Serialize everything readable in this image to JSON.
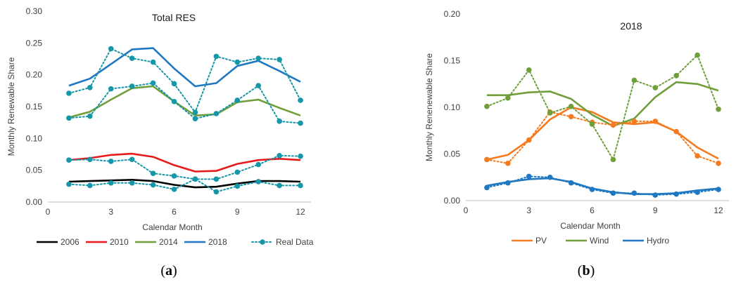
{
  "chart_data": [
    {
      "type": "line",
      "panel_label": "(a)",
      "title": "Total RES",
      "xlabel": "Calendar Month",
      "ylabel": "Monthly Renewable Share",
      "xlim": [
        0,
        12.5
      ],
      "ylim": [
        0,
        0.3
      ],
      "xticks": [
        "0",
        "3",
        "6",
        "9",
        "12"
      ],
      "yticks": [
        "0.00",
        "0.05",
        "0.10",
        "0.15",
        "0.20",
        "0.25",
        "0.30"
      ],
      "x": [
        1,
        2,
        3,
        4,
        5,
        6,
        7,
        8,
        9,
        10,
        11,
        12
      ],
      "legend_position": "bottom",
      "series": [
        {
          "name": "2006",
          "color": "#000000",
          "style": "solid",
          "values": [
            0.032,
            0.033,
            0.034,
            0.035,
            0.033,
            0.027,
            0.023,
            0.024,
            0.029,
            0.033,
            0.033,
            0.032
          ]
        },
        {
          "name": "2010",
          "color": "#e8191b",
          "style": "solid",
          "values": [
            0.066,
            0.069,
            0.074,
            0.076,
            0.071,
            0.058,
            0.048,
            0.049,
            0.06,
            0.066,
            0.068,
            0.066
          ]
        },
        {
          "name": "2014",
          "color": "#6f9e3a",
          "style": "solid",
          "values": [
            0.133,
            0.142,
            0.161,
            0.179,
            0.182,
            0.158,
            0.136,
            0.138,
            0.157,
            0.161,
            0.148,
            0.136
          ]
        },
        {
          "name": "2018",
          "color": "#1f78c1",
          "style": "solid",
          "values": [
            0.183,
            0.194,
            0.217,
            0.24,
            0.242,
            0.21,
            0.182,
            0.187,
            0.214,
            0.222,
            0.206,
            0.189
          ]
        },
        {
          "name": "Real Data",
          "color": "#1796a8",
          "style": "dotted",
          "marker": true,
          "group": "2018",
          "values": [
            0.171,
            0.18,
            0.241,
            0.226,
            0.22,
            0.186,
            0.141,
            0.229,
            0.22,
            0.226,
            0.224,
            0.16
          ]
        },
        {
          "name": "",
          "color": "#1796a8",
          "style": "dotted",
          "marker": true,
          "group": "2014",
          "values": [
            0.132,
            0.135,
            0.178,
            0.182,
            0.187,
            0.158,
            0.131,
            0.139,
            0.16,
            0.183,
            0.127,
            0.124
          ]
        },
        {
          "name": "",
          "color": "#1796a8",
          "style": "dotted",
          "marker": true,
          "group": "2010",
          "values": [
            0.066,
            0.067,
            0.064,
            0.067,
            0.045,
            0.041,
            0.036,
            0.036,
            0.047,
            0.059,
            0.073,
            0.072
          ]
        },
        {
          "name": "",
          "color": "#1796a8",
          "style": "dotted",
          "marker": true,
          "group": "2006",
          "values": [
            0.028,
            0.026,
            0.03,
            0.03,
            0.027,
            0.02,
            0.036,
            0.016,
            0.025,
            0.032,
            0.026,
            0.026
          ]
        }
      ]
    },
    {
      "type": "line",
      "panel_label": "(b)",
      "title": "2018",
      "xlabel": "Calendar Month",
      "ylabel": "Monthly Renenewable Share",
      "xlim": [
        0,
        12.5
      ],
      "ylim": [
        0,
        0.2
      ],
      "xticks": [
        "0",
        "3",
        "6",
        "9",
        "12"
      ],
      "yticks": [
        "0.00",
        "0.05",
        "0.10",
        "0.15",
        "0.20"
      ],
      "x": [
        1,
        2,
        3,
        4,
        5,
        6,
        7,
        8,
        9,
        10,
        11,
        12
      ],
      "legend_position": "bottom",
      "series": [
        {
          "name": "PV",
          "color": "#f47b20",
          "style": "solid",
          "values": [
            0.044,
            0.049,
            0.065,
            0.087,
            0.1,
            0.095,
            0.084,
            0.082,
            0.084,
            0.074,
            0.057,
            0.045
          ]
        },
        {
          "name": "Wind",
          "color": "#6f9e3a",
          "style": "solid",
          "values": [
            0.113,
            0.113,
            0.116,
            0.117,
            0.109,
            0.092,
            0.08,
            0.088,
            0.111,
            0.127,
            0.125,
            0.118
          ]
        },
        {
          "name": "Hydro",
          "color": "#1f78c1",
          "style": "solid",
          "values": [
            0.016,
            0.02,
            0.023,
            0.024,
            0.02,
            0.013,
            0.009,
            0.007,
            0.007,
            0.008,
            0.011,
            0.013
          ]
        },
        {
          "name": "",
          "color": "#f47b20",
          "style": "dotted",
          "marker": true,
          "group": "PV",
          "values": [
            0.044,
            0.04,
            0.065,
            0.095,
            0.09,
            0.084,
            0.081,
            0.085,
            0.085,
            0.074,
            0.048,
            0.04
          ]
        },
        {
          "name": "",
          "color": "#6f9e3a",
          "style": "dotted",
          "marker": true,
          "group": "Wind",
          "values": [
            0.101,
            0.11,
            0.14,
            0.094,
            0.101,
            0.082,
            0.044,
            0.129,
            0.121,
            0.134,
            0.156,
            0.098
          ]
        },
        {
          "name": "",
          "color": "#1f78c1",
          "style": "dotted",
          "marker": true,
          "group": "Hydro",
          "values": [
            0.014,
            0.019,
            0.026,
            0.025,
            0.019,
            0.012,
            0.008,
            0.008,
            0.006,
            0.007,
            0.009,
            0.012
          ]
        }
      ]
    }
  ]
}
